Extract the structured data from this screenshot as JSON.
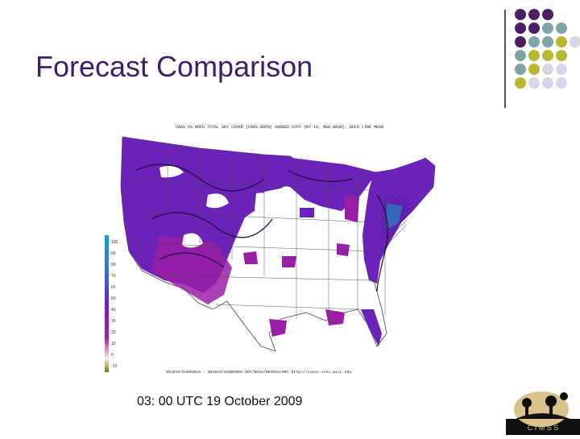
{
  "slide": {
    "title": "Forecast Comparison",
    "caption": "03: 00 UTC 19 October 2009"
  },
  "figure": {
    "header": "CRAS VS NDFD TOTAL SKY COVER (CRAS-NDFD) SHADED DIFF (BY 10, NEG HASH), BOLD LINE MEAN",
    "footer": "091019/0300V015 - 091019/0300V008 DOC/NOAA/NESDIS/ORA    http://cimss.ssec.wisc.edu",
    "colorbar_labels": [
      "100",
      "90",
      "80",
      "70",
      "60",
      "50",
      "40",
      "30",
      "20",
      "10",
      "0",
      "-10"
    ]
  },
  "logo": {
    "text": "C I M S S"
  },
  "colors": {
    "title": "#3b1f6b",
    "deep_purple": "#4a1f66",
    "teal": "#7fa3a6",
    "olive": "#b8b82e",
    "lavender": "#d6d6e6",
    "map_purple": "#6a22b8",
    "map_magenta": "#9a1fa6"
  }
}
